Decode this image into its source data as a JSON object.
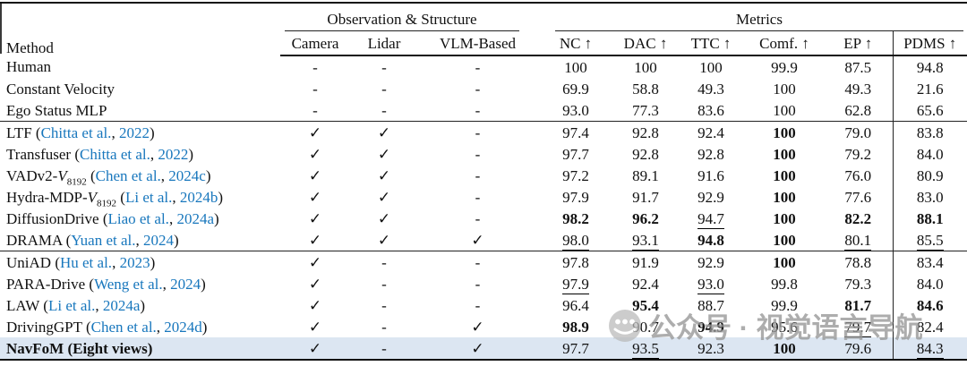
{
  "table": {
    "header": {
      "method": "Method",
      "observation_group": "Observation & Structure",
      "metrics_group": "Metrics",
      "obs_cols": [
        "Camera",
        "Lidar",
        "VLM-Based"
      ],
      "metric_cols": [
        "NC ↑",
        "DAC ↑",
        "TTC ↑",
        "Comf. ↑",
        "EP ↑",
        "PDMS ↑"
      ]
    },
    "legend": {
      "check": "✓",
      "dash": "-",
      "bold_means": "best",
      "underline_means": "second-best"
    },
    "groups": [
      {
        "rows": [
          {
            "method": {
              "base": "Human"
            },
            "camera": "-",
            "lidar": "-",
            "vlm": "-",
            "metrics": [
              "100",
              "100",
              "100",
              "99.9",
              "87.5",
              "94.8"
            ]
          },
          {
            "method": {
              "base": "Constant Velocity"
            },
            "camera": "-",
            "lidar": "-",
            "vlm": "-",
            "metrics": [
              "69.9",
              "58.8",
              "49.3",
              "100",
              "49.3",
              "21.6"
            ]
          },
          {
            "method": {
              "base": "Ego Status MLP"
            },
            "camera": "-",
            "lidar": "-",
            "vlm": "-",
            "metrics": [
              "93.0",
              "77.3",
              "83.6",
              "100",
              "62.8",
              "65.6"
            ]
          }
        ]
      },
      {
        "rows": [
          {
            "method": {
              "base": "LTF",
              "cite": {
                "authors": "Chitta et al.",
                "year": "2022"
              }
            },
            "camera": "✓",
            "lidar": "✓",
            "vlm": "-",
            "metrics": [
              "97.4",
              "92.8",
              "92.4",
              "b:100",
              "79.0",
              "83.8"
            ]
          },
          {
            "method": {
              "base": "Transfuser",
              "cite": {
                "authors": "Chitta et al.",
                "year": "2022"
              }
            },
            "camera": "✓",
            "lidar": "✓",
            "vlm": "-",
            "metrics": [
              "97.7",
              "92.8",
              "92.8",
              "b:100",
              "79.2",
              "84.0"
            ]
          },
          {
            "method": {
              "base": "VADv2-",
              "script_v": "V",
              "subscript": "8192",
              "cite": {
                "authors": "Chen et al.",
                "year": "2024c"
              }
            },
            "camera": "✓",
            "lidar": "✓",
            "vlm": "-",
            "metrics": [
              "97.2",
              "89.1",
              "91.6",
              "b:100",
              "76.0",
              "80.9"
            ]
          },
          {
            "method": {
              "base": "Hydra-MDP-",
              "script_v": "V",
              "subscript": "8192",
              "cite": {
                "authors": "Li et al.",
                "year": "2024b"
              }
            },
            "camera": "✓",
            "lidar": "✓",
            "vlm": "-",
            "metrics": [
              "97.9",
              "91.7",
              "92.9",
              "b:100",
              "77.6",
              "83.0"
            ]
          },
          {
            "method": {
              "base": "DiffusionDrive",
              "cite": {
                "authors": "Liao et al.",
                "year": "2024a"
              }
            },
            "camera": "✓",
            "lidar": "✓",
            "vlm": "-",
            "metrics": [
              "b:98.2",
              "b:96.2",
              "u:94.7",
              "b:100",
              "b:82.2",
              "b:88.1"
            ]
          },
          {
            "method": {
              "base": "DRAMA",
              "cite": {
                "authors": "Yuan et al.",
                "year": "2024"
              }
            },
            "camera": "✓",
            "lidar": "✓",
            "vlm": "✓",
            "metrics": [
              "u:98.0",
              "u:93.1",
              "b:94.8",
              "b:100",
              "u:80.1",
              "u:85.5"
            ]
          }
        ]
      },
      {
        "rows": [
          {
            "method": {
              "base": "UniAD",
              "cite": {
                "authors": "Hu et al.",
                "year": "2023"
              }
            },
            "camera": "✓",
            "lidar": "-",
            "vlm": "-",
            "metrics": [
              "97.8",
              "91.9",
              "92.9",
              "b:100",
              "78.8",
              "83.4"
            ]
          },
          {
            "method": {
              "base": "PARA-Drive",
              "cite": {
                "authors": "Weng et al.",
                "year": "2024"
              }
            },
            "camera": "✓",
            "lidar": "-",
            "vlm": "-",
            "metrics": [
              "u:97.9",
              "92.4",
              "u:93.0",
              "99.8",
              "79.3",
              "84.0"
            ]
          },
          {
            "method": {
              "base": "LAW",
              "cite": {
                "authors": "Li et al.",
                "year": "2024a"
              }
            },
            "camera": "✓",
            "lidar": "-",
            "vlm": "-",
            "metrics": [
              "96.4",
              "b:95.4",
              "88.7",
              "99.9",
              "b:81.7",
              "b:84.6"
            ]
          },
          {
            "method": {
              "base": "DrivingGPT",
              "cite": {
                "authors": "Chen et al.",
                "year": "2024d"
              }
            },
            "camera": "✓",
            "lidar": "-",
            "vlm": "✓",
            "metrics": [
              "b:98.9",
              "90.7",
              "b:94.9",
              "95.6",
              "u:79.7",
              "82.4"
            ]
          },
          {
            "method": {
              "base": "NavFoM (Eight views)",
              "bold": true
            },
            "highlight": true,
            "camera": "✓",
            "lidar": "-",
            "vlm": "✓",
            "metrics": [
              "97.7",
              "u:93.5",
              "92.3",
              "b:100",
              "79.6",
              "u:84.3"
            ]
          }
        ]
      }
    ]
  },
  "watermark": {
    "text": "公众号 · 视觉语言导航",
    "icon": "wechat-official-account-icon"
  },
  "colors": {
    "citation_blue": "#1877bd",
    "highlight_row": "#dce6f2",
    "watermark_gray": "#969696",
    "rule_black": "#111111"
  }
}
